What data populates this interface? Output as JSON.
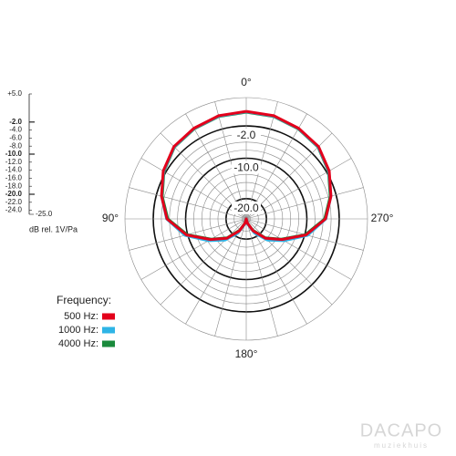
{
  "chart_data": {
    "type": "polar",
    "radial_unit_label": "dB rel. 1V/Pa",
    "rlim": [
      -25,
      5
    ],
    "rticks": [
      {
        "value": 5,
        "label": "+5.0"
      },
      {
        "value": -2,
        "label": "-2.0"
      },
      {
        "value": -4,
        "label": "-4.0"
      },
      {
        "value": -6,
        "label": "-6.0"
      },
      {
        "value": -8,
        "label": "-8.0"
      },
      {
        "value": -10,
        "label": "-10.0"
      },
      {
        "value": -12,
        "label": "-12.0"
      },
      {
        "value": -14,
        "label": "-14.0"
      },
      {
        "value": -16,
        "label": "-16.0"
      },
      {
        "value": -18,
        "label": "-18.0"
      },
      {
        "value": -20,
        "label": "-20.0"
      },
      {
        "value": -22,
        "label": "-22.0"
      },
      {
        "value": -24,
        "label": "-24.0"
      },
      {
        "value": -25,
        "label": "-25.0"
      }
    ],
    "ring_labels": [
      {
        "value": -2,
        "label": "-2.0"
      },
      {
        "value": -10,
        "label": "-10.0"
      },
      {
        "value": -20,
        "label": "-20.0"
      }
    ],
    "angle_labels": [
      {
        "value": 0,
        "label": "0°"
      },
      {
        "value": 90,
        "label": "90°"
      },
      {
        "value": 180,
        "label": "180°"
      },
      {
        "value": 270,
        "label": "270°"
      }
    ],
    "theta": [
      0,
      15,
      30,
      45,
      60,
      75,
      90,
      105,
      120,
      135,
      150,
      165,
      180,
      195,
      210,
      225,
      240,
      255,
      270,
      285,
      300,
      315,
      330,
      345,
      360
    ],
    "legend_title": "Frequency:",
    "series": [
      {
        "name": "500 Hz:",
        "color": "#e3001b",
        "values": [
          1.6,
          1.4,
          0.9,
          0.3,
          -1.3,
          -3.3,
          -5.4,
          -9.7,
          -14.8,
          -18.2,
          -21.6,
          -23.9,
          -25,
          -23.9,
          -21.6,
          -18.2,
          -14.8,
          -9.7,
          -5.4,
          -3.3,
          -1.3,
          0.3,
          0.9,
          1.4,
          1.6
        ]
      },
      {
        "name": "1000 Hz:",
        "color": "#2eb4e6",
        "values": [
          1.5,
          1.3,
          0.8,
          0.2,
          -1.4,
          -3.3,
          -5.3,
          -9.3,
          -14.2,
          -17.6,
          -21.0,
          -23.7,
          -25,
          -23.7,
          -21.0,
          -17.6,
          -14.2,
          -9.3,
          -5.3,
          -3.3,
          -1.4,
          0.2,
          0.8,
          1.3,
          1.5
        ]
      },
      {
        "name": "4000 Hz:",
        "color": "#1a8a3c",
        "values": [
          1.4,
          1.2,
          0.7,
          0.1,
          -1.5,
          -3.5,
          -5.6,
          -9.9,
          -15.0,
          -18.4,
          -21.8,
          -24.0,
          -25,
          -24.0,
          -21.8,
          -18.4,
          -15.0,
          -9.9,
          -5.6,
          -3.5,
          -1.5,
          0.1,
          0.7,
          1.2,
          1.4
        ]
      }
    ],
    "watermark": {
      "brand": "DACAPO",
      "sub": "muziekhuis"
    }
  }
}
